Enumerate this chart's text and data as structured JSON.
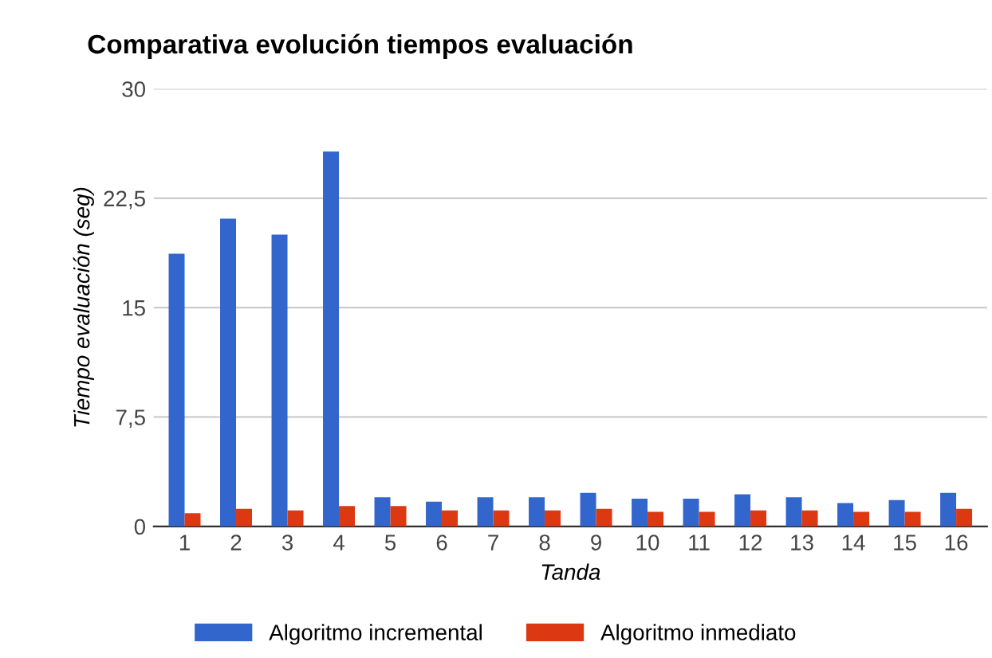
{
  "chart_data": {
    "type": "bar",
    "title": "Comparativa evolución tiempos evaluación",
    "xlabel": "Tanda",
    "ylabel": "Tiempo evaluación (seg)",
    "categories": [
      "1",
      "2",
      "3",
      "4",
      "5",
      "6",
      "7",
      "8",
      "9",
      "10",
      "11",
      "12",
      "13",
      "14",
      "15",
      "16"
    ],
    "series": [
      {
        "name": "Algoritmo incremental",
        "color": "#3366cc",
        "values": [
          18.7,
          21.1,
          20.0,
          25.7,
          2.0,
          1.7,
          2.0,
          2.0,
          2.3,
          1.9,
          1.9,
          2.2,
          2.0,
          1.6,
          1.8,
          2.3
        ]
      },
      {
        "name": "Algoritmo inmediato",
        "color": "#dc3912",
        "values": [
          0.9,
          1.2,
          1.1,
          1.4,
          1.4,
          1.1,
          1.1,
          1.1,
          1.2,
          1.0,
          1.0,
          1.1,
          1.1,
          1.0,
          1.0,
          1.2
        ]
      }
    ],
    "ylim": [
      0,
      30
    ],
    "yticks": [
      0,
      {
        "value": 7.5,
        "label": "7,5"
      },
      15,
      {
        "value": 22.5,
        "label": "22,5"
      },
      30
    ],
    "grid": "y",
    "legend": "bottom"
  }
}
